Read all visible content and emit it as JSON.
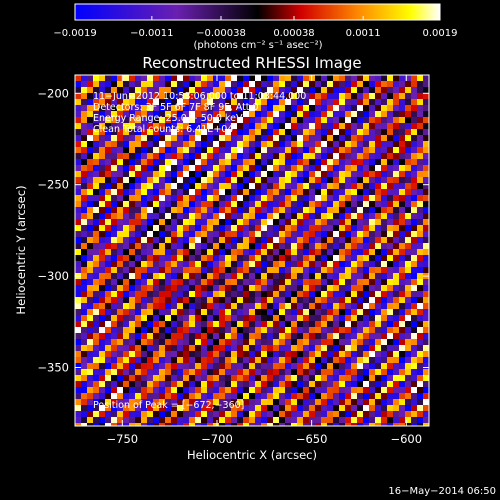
{
  "chart_data": {
    "type": "heatmap",
    "title": "Reconstructed RHESSI Image",
    "xlabel": "Heliocentric X (arcsec)",
    "ylabel": "Heliocentric Y (arcsec)",
    "xlim": [
      -775,
      -588
    ],
    "ylim": [
      -382,
      -190
    ],
    "x_ticks": [
      -750,
      -700,
      -650,
      -600
    ],
    "x_tick_labels": [
      "−750",
      "−700",
      "−650",
      "−600"
    ],
    "y_ticks": [
      -200,
      -250,
      -300,
      -350
    ],
    "y_tick_labels": [
      "−200",
      "−250",
      "−300",
      "−350"
    ],
    "colorbar": {
      "range": [
        -0.0019,
        0.0019
      ],
      "ticks": [
        -0.0019,
        -0.0011,
        -0.00038,
        0.00038,
        0.0011,
        0.0019
      ],
      "tick_labels": [
        "−0.0019",
        "−0.0011",
        "−0.00038",
        "0.00038",
        "0.0011",
        "0.0019"
      ],
      "unit_label": "(photons cm⁻² s⁻¹ asec⁻²)",
      "colors": [
        "#0000ff",
        "#7a1fa0",
        "#000000",
        "#d20000",
        "#ff8c00",
        "#ffff00",
        "#ffffff"
      ]
    },
    "annotations": [
      "11−Jun−2012 10:58:06.000 to 11:03:44.000",
      "Detectors: 3F 5F 6F 7F 8F 9F, Att 0",
      "Energy Range: 25.0 − 50.0 keV",
      "Clean     Total counts: 6.41E+04"
    ],
    "peak_label": "Position of Peak = [−672,−360]",
    "peak": [
      -672,
      -360
    ],
    "stripe_orientation_deg": 45,
    "stripe_period_arcsec": 14,
    "footer_date": "16−May−2014 06:50"
  }
}
